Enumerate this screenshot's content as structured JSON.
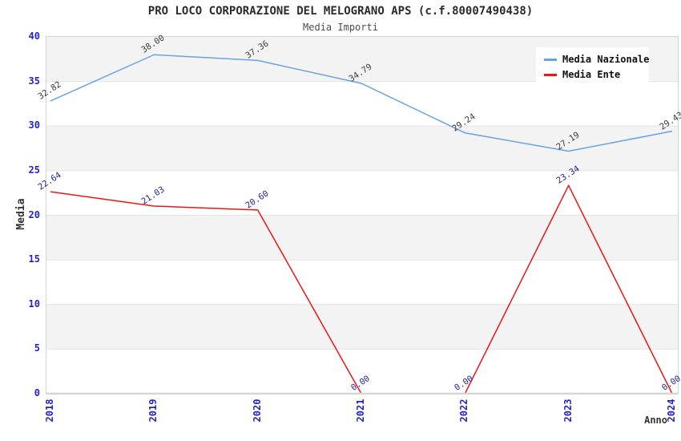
{
  "chart": {
    "title": "PRO LOCO CORPORAZIONE DEL MELOGRANO APS (c.f.80007490438)",
    "subtitle": "Media Importi"
  },
  "chart_data": {
    "type": "line",
    "title": "PRO LOCO CORPORAZIONE DEL MELOGRANO APS (c.f.80007490438)",
    "subtitle": "Media Importi",
    "xlabel": "Anno",
    "ylabel": "Media",
    "categories": [
      "2018",
      "2019",
      "2020",
      "2021",
      "2022",
      "2023",
      "2024"
    ],
    "series": [
      {
        "name": "Media Nazionale",
        "color": "#69a3e4",
        "label_color": "#3c3c3c",
        "values": [
          32.82,
          38.0,
          37.36,
          34.79,
          29.24,
          27.19,
          29.43
        ]
      },
      {
        "name": "Media Ente",
        "color": "#ee1515",
        "label_color": "#222299",
        "values": [
          22.64,
          21.03,
          20.6,
          0.0,
          0.0,
          23.34,
          0.0
        ]
      }
    ],
    "ylim": [
      0,
      40
    ],
    "yticks": [
      0,
      5,
      10,
      15,
      20,
      25,
      30,
      35,
      40
    ],
    "grid": true,
    "legend_position": "top-right",
    "colors": {
      "tick_label": "#2323cc",
      "band_fill": "#f3f3f3",
      "gridline": "#e4e4e4",
      "plot_border": "#d4d4d4",
      "title_text": "#2b2b2b",
      "subtitle_text": "#4d4d4d"
    }
  }
}
